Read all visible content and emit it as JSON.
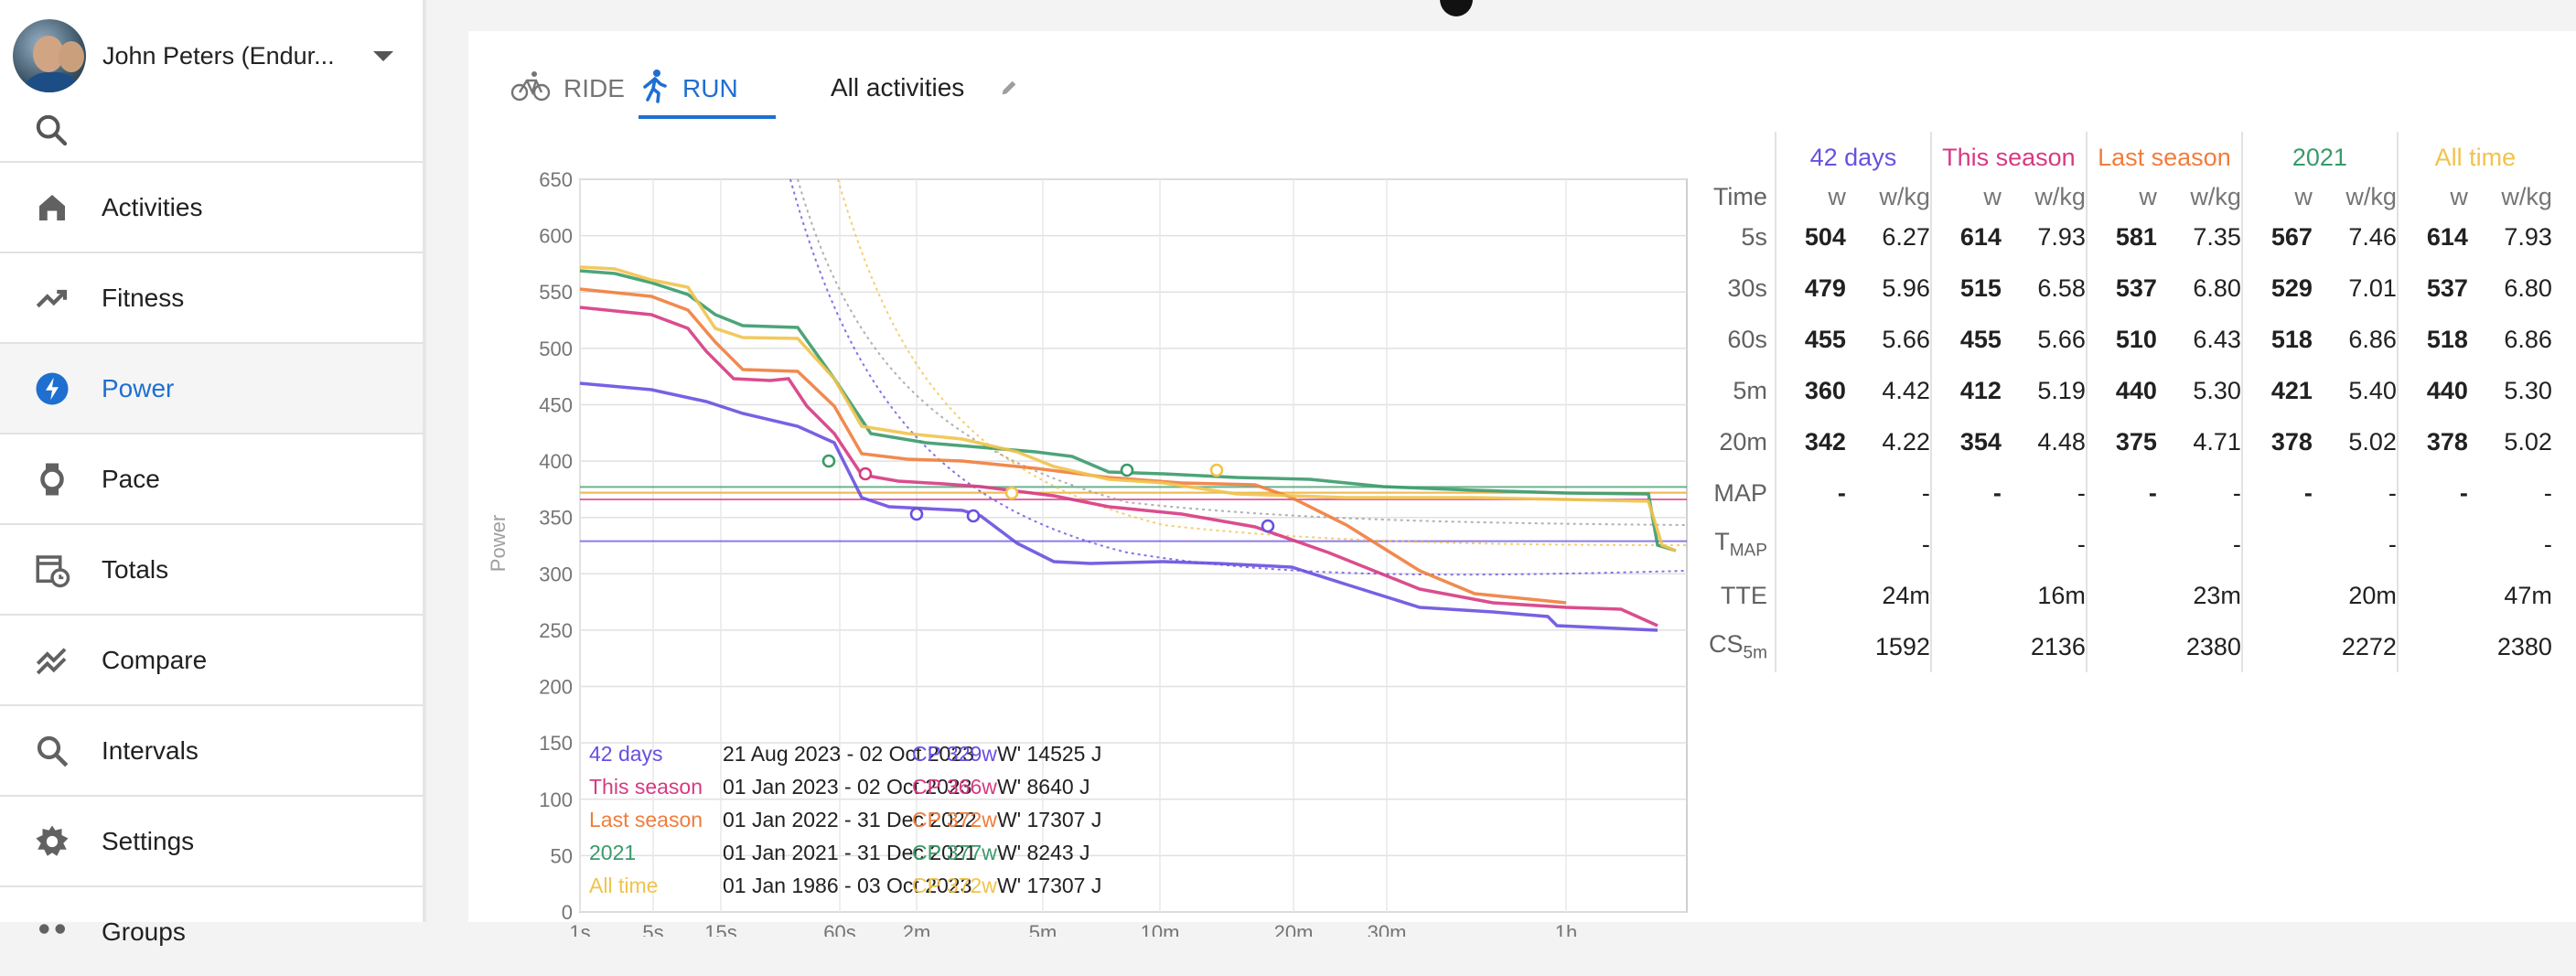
{
  "user": {
    "name": "John Peters (Endur..."
  },
  "nav": [
    {
      "label": "Activities",
      "icon": "home-icon"
    },
    {
      "label": "Fitness",
      "icon": "trending-up-icon"
    },
    {
      "label": "Power",
      "icon": "bolt-icon",
      "active": true
    },
    {
      "label": "Pace",
      "icon": "watch-icon"
    },
    {
      "label": "Totals",
      "icon": "calendar-clock-icon"
    },
    {
      "label": "Compare",
      "icon": "compare-icon"
    },
    {
      "label": "Intervals",
      "icon": "search-icon"
    },
    {
      "label": "Settings",
      "icon": "gear-icon"
    },
    {
      "label": "Groups",
      "icon": "groups-icon"
    }
  ],
  "tabs": {
    "ride": "RIDE",
    "run": "RUN"
  },
  "filter": {
    "label": "All activities"
  },
  "colors": {
    "accent": "#1e6fd0",
    "d42": "#6a4fe0",
    "season": "#d63a82",
    "last": "#ef7d3c",
    "y2021": "#3a9a6a",
    "all": "#f0c34c"
  },
  "chart_data": {
    "type": "line",
    "ylabel": "Power",
    "ylim": [
      0,
      650
    ],
    "yticks": [
      "0",
      "50",
      "100",
      "150",
      "200",
      "250",
      "300",
      "350",
      "400",
      "450",
      "500",
      "550",
      "600",
      "650"
    ],
    "xticks": [
      "1s",
      "5s",
      "15s",
      "60s",
      "2m",
      "5m",
      "10m",
      "20m",
      "30m",
      "1h"
    ],
    "series": [
      {
        "name": "42 days",
        "range_from": "21 Aug 2023",
        "range_to": "02 Oct 2023",
        "cp": "CP 329w",
        "wprime": "W' 14525 J",
        "cp_value": 329
      },
      {
        "name": "This season",
        "range_from": "01 Jan 2023",
        "range_to": "02 Oct 2023",
        "cp": "CP 366w",
        "wprime": "W' 8640 J",
        "cp_value": 366
      },
      {
        "name": "Last season",
        "range_from": "01 Jan 2022",
        "range_to": "31 Dec 2022",
        "cp": "CP 372w",
        "wprime": "W' 17307 J",
        "cp_value": 372
      },
      {
        "name": "2021",
        "range_from": "01 Jan 2021",
        "range_to": "31 Dec 2021",
        "cp": "CP 377w",
        "wprime": "W' 8243 J",
        "cp_value": 377
      },
      {
        "name": "All time",
        "range_from": "01 Jan 1986",
        "range_to": "03 Oct 2023",
        "cp": "CP 372w",
        "wprime": "W' 17307 J",
        "cp_value": 372
      }
    ]
  },
  "stats": {
    "time_label": "Time",
    "unit_w": "w",
    "unit_wkg": "w/kg",
    "periods": [
      "42 days",
      "This season",
      "Last season",
      "2021",
      "All time"
    ],
    "rows": [
      {
        "label": "5s",
        "vals": [
          [
            "504",
            "6.27"
          ],
          [
            "614",
            "7.93"
          ],
          [
            "581",
            "7.35"
          ],
          [
            "567",
            "7.46"
          ],
          [
            "614",
            "7.93"
          ]
        ]
      },
      {
        "label": "30s",
        "vals": [
          [
            "479",
            "5.96"
          ],
          [
            "515",
            "6.58"
          ],
          [
            "537",
            "6.80"
          ],
          [
            "529",
            "7.01"
          ],
          [
            "537",
            "6.80"
          ]
        ]
      },
      {
        "label": "60s",
        "vals": [
          [
            "455",
            "5.66"
          ],
          [
            "455",
            "5.66"
          ],
          [
            "510",
            "6.43"
          ],
          [
            "518",
            "6.86"
          ],
          [
            "518",
            "6.86"
          ]
        ]
      },
      {
        "label": "5m",
        "vals": [
          [
            "360",
            "4.42"
          ],
          [
            "412",
            "5.19"
          ],
          [
            "440",
            "5.30"
          ],
          [
            "421",
            "5.40"
          ],
          [
            "440",
            "5.30"
          ]
        ]
      },
      {
        "label": "20m",
        "vals": [
          [
            "342",
            "4.22"
          ],
          [
            "354",
            "4.48"
          ],
          [
            "375",
            "4.71"
          ],
          [
            "378",
            "5.02"
          ],
          [
            "378",
            "5.02"
          ]
        ]
      },
      {
        "label": "MAP",
        "vals": [
          [
            "-",
            "-"
          ],
          [
            "-",
            "-"
          ],
          [
            "-",
            "-"
          ],
          [
            "-",
            "-"
          ],
          [
            "-",
            "-"
          ]
        ]
      }
    ],
    "tmap_label": "T",
    "tmap_sub": "MAP",
    "tmap": [
      "-",
      "-",
      "-",
      "-",
      "-"
    ],
    "tte_label": "TTE",
    "tte": [
      "24m",
      "16m",
      "23m",
      "20m",
      "47m"
    ],
    "cs_label": "CS",
    "cs_sub": "5m",
    "cs": [
      "1592",
      "2136",
      "2380",
      "2272",
      "2380"
    ]
  }
}
